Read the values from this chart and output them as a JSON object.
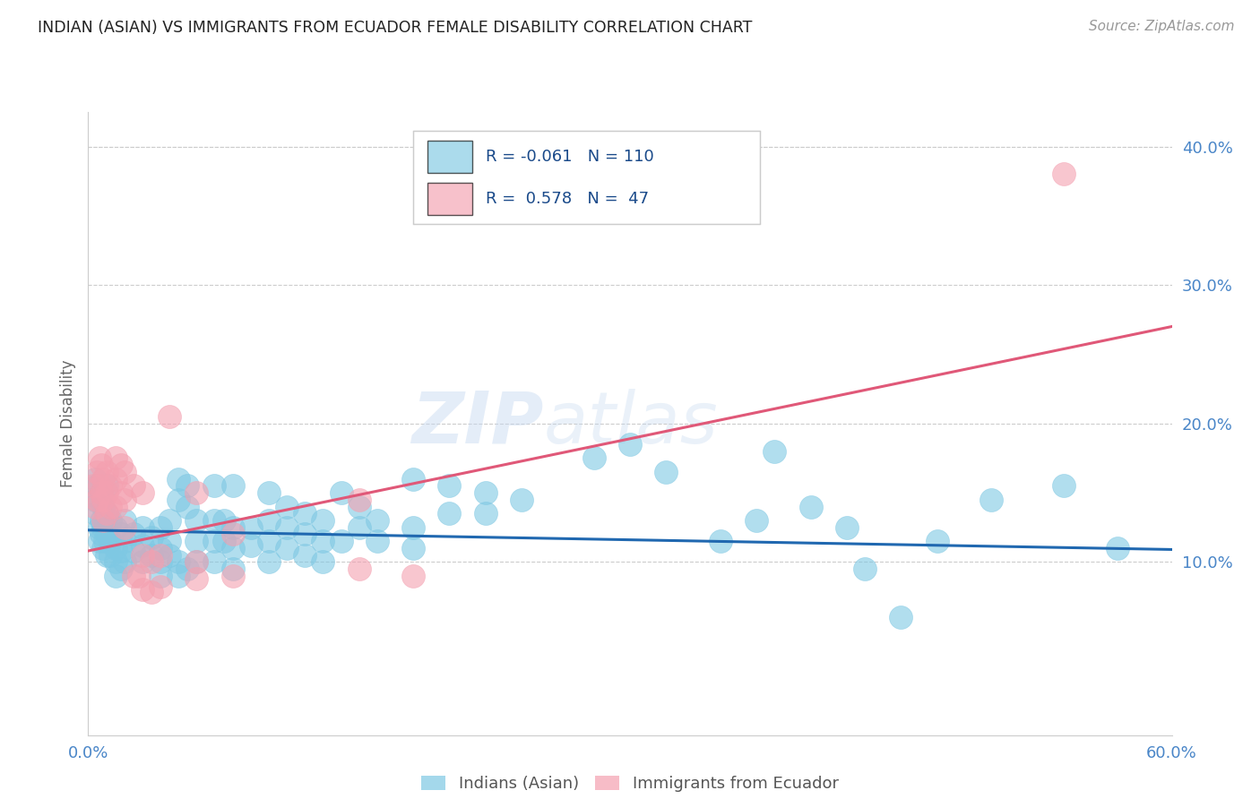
{
  "title": "INDIAN (ASIAN) VS IMMIGRANTS FROM ECUADOR FEMALE DISABILITY CORRELATION CHART",
  "source": "Source: ZipAtlas.com",
  "ylabel": "Female Disability",
  "xlim": [
    0.0,
    0.6
  ],
  "ylim": [
    -0.025,
    0.425
  ],
  "yticks": [
    0.0,
    0.1,
    0.2,
    0.3,
    0.4
  ],
  "ytick_labels": [
    "",
    "10.0%",
    "20.0%",
    "30.0%",
    "40.0%"
  ],
  "xticks": [
    0.0,
    0.1,
    0.2,
    0.3,
    0.4,
    0.5,
    0.6
  ],
  "xtick_labels": [
    "0.0%",
    "",
    "",
    "",
    "",
    "",
    "60.0%"
  ],
  "watermark": "ZIPatlas",
  "blue_color": "#7ec8e3",
  "pink_color": "#f4a0b0",
  "line_blue": "#2068b0",
  "line_pink": "#e05878",
  "tick_color": "#4a86c8",
  "background": "#ffffff",
  "blue_scatter": [
    [
      0.004,
      0.16
    ],
    [
      0.004,
      0.145
    ],
    [
      0.004,
      0.135
    ],
    [
      0.005,
      0.155
    ],
    [
      0.006,
      0.145
    ],
    [
      0.006,
      0.125
    ],
    [
      0.006,
      0.115
    ],
    [
      0.007,
      0.15
    ],
    [
      0.007,
      0.13
    ],
    [
      0.007,
      0.12
    ],
    [
      0.008,
      0.14
    ],
    [
      0.008,
      0.125
    ],
    [
      0.008,
      0.11
    ],
    [
      0.009,
      0.13
    ],
    [
      0.009,
      0.115
    ],
    [
      0.01,
      0.155
    ],
    [
      0.01,
      0.135
    ],
    [
      0.01,
      0.12
    ],
    [
      0.01,
      0.105
    ],
    [
      0.012,
      0.13
    ],
    [
      0.012,
      0.115
    ],
    [
      0.012,
      0.105
    ],
    [
      0.015,
      0.125
    ],
    [
      0.015,
      0.11
    ],
    [
      0.015,
      0.1
    ],
    [
      0.015,
      0.09
    ],
    [
      0.018,
      0.12
    ],
    [
      0.018,
      0.108
    ],
    [
      0.018,
      0.095
    ],
    [
      0.02,
      0.13
    ],
    [
      0.02,
      0.115
    ],
    [
      0.02,
      0.1
    ],
    [
      0.025,
      0.12
    ],
    [
      0.025,
      0.108
    ],
    [
      0.03,
      0.125
    ],
    [
      0.03,
      0.112
    ],
    [
      0.03,
      0.1
    ],
    [
      0.035,
      0.118
    ],
    [
      0.035,
      0.105
    ],
    [
      0.04,
      0.125
    ],
    [
      0.04,
      0.11
    ],
    [
      0.04,
      0.1
    ],
    [
      0.04,
      0.09
    ],
    [
      0.045,
      0.13
    ],
    [
      0.045,
      0.115
    ],
    [
      0.045,
      0.105
    ],
    [
      0.05,
      0.16
    ],
    [
      0.05,
      0.145
    ],
    [
      0.05,
      0.1
    ],
    [
      0.05,
      0.09
    ],
    [
      0.055,
      0.155
    ],
    [
      0.055,
      0.14
    ],
    [
      0.055,
      0.095
    ],
    [
      0.06,
      0.13
    ],
    [
      0.06,
      0.115
    ],
    [
      0.06,
      0.1
    ],
    [
      0.07,
      0.155
    ],
    [
      0.07,
      0.13
    ],
    [
      0.07,
      0.115
    ],
    [
      0.07,
      0.1
    ],
    [
      0.075,
      0.13
    ],
    [
      0.075,
      0.115
    ],
    [
      0.08,
      0.155
    ],
    [
      0.08,
      0.125
    ],
    [
      0.08,
      0.11
    ],
    [
      0.08,
      0.095
    ],
    [
      0.09,
      0.125
    ],
    [
      0.09,
      0.112
    ],
    [
      0.1,
      0.15
    ],
    [
      0.1,
      0.13
    ],
    [
      0.1,
      0.115
    ],
    [
      0.1,
      0.1
    ],
    [
      0.11,
      0.14
    ],
    [
      0.11,
      0.125
    ],
    [
      0.11,
      0.11
    ],
    [
      0.12,
      0.135
    ],
    [
      0.12,
      0.12
    ],
    [
      0.12,
      0.105
    ],
    [
      0.13,
      0.13
    ],
    [
      0.13,
      0.115
    ],
    [
      0.13,
      0.1
    ],
    [
      0.14,
      0.15
    ],
    [
      0.14,
      0.115
    ],
    [
      0.15,
      0.14
    ],
    [
      0.15,
      0.125
    ],
    [
      0.16,
      0.13
    ],
    [
      0.16,
      0.115
    ],
    [
      0.18,
      0.16
    ],
    [
      0.18,
      0.125
    ],
    [
      0.18,
      0.11
    ],
    [
      0.2,
      0.155
    ],
    [
      0.2,
      0.135
    ],
    [
      0.22,
      0.15
    ],
    [
      0.22,
      0.135
    ],
    [
      0.24,
      0.145
    ],
    [
      0.28,
      0.175
    ],
    [
      0.3,
      0.185
    ],
    [
      0.32,
      0.165
    ],
    [
      0.35,
      0.115
    ],
    [
      0.37,
      0.13
    ],
    [
      0.38,
      0.18
    ],
    [
      0.4,
      0.14
    ],
    [
      0.42,
      0.125
    ],
    [
      0.43,
      0.095
    ],
    [
      0.45,
      0.06
    ],
    [
      0.47,
      0.115
    ],
    [
      0.5,
      0.145
    ],
    [
      0.54,
      0.155
    ],
    [
      0.57,
      0.11
    ]
  ],
  "pink_scatter": [
    [
      0.003,
      0.155
    ],
    [
      0.004,
      0.14
    ],
    [
      0.005,
      0.165
    ],
    [
      0.005,
      0.145
    ],
    [
      0.006,
      0.175
    ],
    [
      0.006,
      0.155
    ],
    [
      0.007,
      0.17
    ],
    [
      0.007,
      0.15
    ],
    [
      0.008,
      0.16
    ],
    [
      0.008,
      0.145
    ],
    [
      0.008,
      0.13
    ],
    [
      0.01,
      0.165
    ],
    [
      0.01,
      0.15
    ],
    [
      0.01,
      0.135
    ],
    [
      0.012,
      0.155
    ],
    [
      0.012,
      0.14
    ],
    [
      0.015,
      0.175
    ],
    [
      0.015,
      0.16
    ],
    [
      0.015,
      0.14
    ],
    [
      0.018,
      0.17
    ],
    [
      0.018,
      0.15
    ],
    [
      0.02,
      0.165
    ],
    [
      0.02,
      0.145
    ],
    [
      0.02,
      0.125
    ],
    [
      0.025,
      0.155
    ],
    [
      0.025,
      0.09
    ],
    [
      0.028,
      0.09
    ],
    [
      0.03,
      0.15
    ],
    [
      0.03,
      0.105
    ],
    [
      0.03,
      0.08
    ],
    [
      0.035,
      0.1
    ],
    [
      0.035,
      0.078
    ],
    [
      0.04,
      0.105
    ],
    [
      0.04,
      0.082
    ],
    [
      0.045,
      0.205
    ],
    [
      0.06,
      0.15
    ],
    [
      0.06,
      0.1
    ],
    [
      0.06,
      0.088
    ],
    [
      0.08,
      0.12
    ],
    [
      0.08,
      0.09
    ],
    [
      0.15,
      0.145
    ],
    [
      0.15,
      0.095
    ],
    [
      0.18,
      0.09
    ],
    [
      0.54,
      0.38
    ]
  ],
  "blue_line_x": [
    0.0,
    0.6
  ],
  "blue_line_y": [
    0.123,
    0.109
  ],
  "pink_line_x": [
    0.0,
    0.6
  ],
  "pink_line_y": [
    0.108,
    0.27
  ]
}
